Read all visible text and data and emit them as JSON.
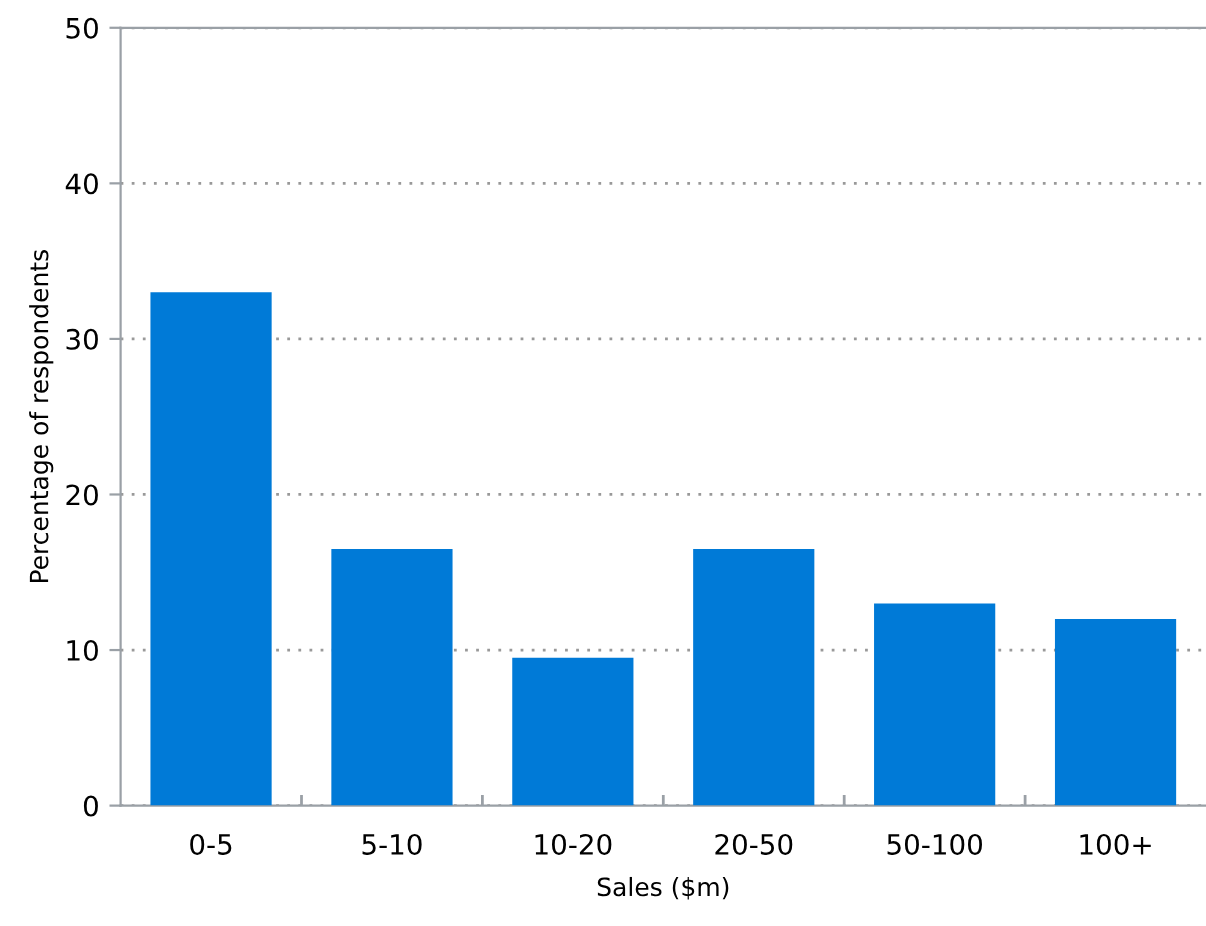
{
  "chart_data": {
    "type": "bar",
    "xlabel": "Sales ($m)",
    "ylabel": "Percentage of respondents",
    "categories": [
      "0-5",
      "5-10",
      "10-20",
      "20-50",
      "50-100",
      "100+"
    ],
    "values": [
      33,
      16.5,
      9.5,
      16.5,
      13,
      12
    ],
    "color": "#007ad7",
    "ylim": [
      0,
      50
    ],
    "yticks": [
      0,
      10,
      20,
      30,
      40,
      50
    ],
    "grid": "y"
  }
}
